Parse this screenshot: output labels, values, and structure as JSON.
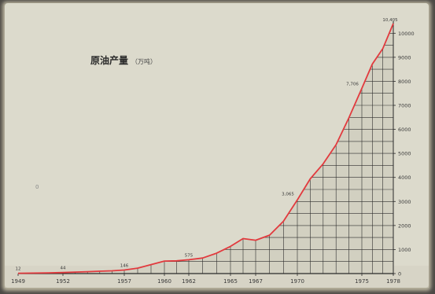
{
  "chart_data": {
    "type": "line",
    "title": "原油产量",
    "unit_label": "（万吨）",
    "x_tick_labels": [
      "1949",
      "1952",
      "1957",
      "1960",
      "1962",
      "1965",
      "1967",
      "1970",
      "1975",
      "1978"
    ],
    "y_tick_labels": [
      "0",
      "1000",
      "2000",
      "3000",
      "4000",
      "5000",
      "6000",
      "7000",
      "8000",
      "9000",
      "10000"
    ],
    "ylim": [
      0,
      10500
    ],
    "xlim": [
      1949,
      1978
    ],
    "grid": true,
    "series": [
      {
        "x": [
          1949,
          1950,
          1951,
          1952,
          1953,
          1954,
          1955,
          1956,
          1957,
          1958,
          1959,
          1960,
          1961,
          1962,
          1963,
          1964,
          1965,
          1966,
          1967,
          1968,
          1969,
          1970,
          1971,
          1972,
          1973,
          1974,
          1975,
          1976,
          1977,
          1978
        ],
        "values": [
          12,
          20,
          30,
          44,
          62,
          79,
          97,
          116,
          146,
          226,
          373,
          520,
          531,
          575,
          648,
          848,
          1131,
          1455,
          1388,
          1599,
          2174,
          3065,
          3941,
          4567,
          5361,
          6485,
          7706,
          8716,
          9364,
          10405
        ],
        "color": "#e23a3e"
      }
    ],
    "data_labels": [
      {
        "x": 1949,
        "value": 12,
        "text": "12"
      },
      {
        "x": 1952,
        "value": 44,
        "text": "44"
      },
      {
        "x": 1957,
        "value": 146,
        "text": "146"
      },
      {
        "x": 1962,
        "value": 575,
        "text": "575"
      },
      {
        "x": 1970,
        "value": 3065,
        "text": "3,065"
      },
      {
        "x": 1975,
        "value": 7706,
        "text": "7,706"
      },
      {
        "x": 1978,
        "value": 10405,
        "text": "10,405"
      }
    ],
    "stray_mark": "0"
  }
}
